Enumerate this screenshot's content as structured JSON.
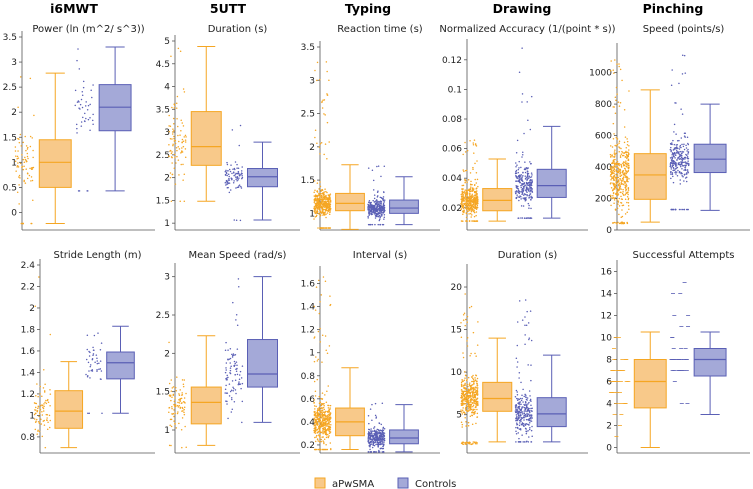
{
  "figure": {
    "legend": [
      {
        "name": "aPwSMA",
        "color": "#f5a623",
        "fill": "#f8c98a"
      },
      {
        "name": "Controls",
        "color": "#5a5fb5",
        "fill": "#a4a9d8"
      }
    ],
    "column_titles": [
      "i6MWT",
      "5UTT",
      "Typing",
      "Drawing",
      "Pinching"
    ]
  },
  "chart_data": [
    {
      "type": "box",
      "title": "Power (ln (m^2/ s^3))",
      "ylim": [
        -0.35,
        3.5
      ],
      "ticks": [
        0,
        0.5,
        1,
        1.5,
        2,
        2.5,
        3,
        3.5
      ],
      "tick_labels": [
        "0",
        "0.5",
        "1",
        "1.5",
        "2",
        "2.5",
        "3",
        "3.5"
      ],
      "series": [
        {
          "name": "aPwSMA",
          "min": -0.22,
          "q1": 0.5,
          "median": 1.0,
          "q3": 1.45,
          "max": 2.78,
          "pmin": -0.22,
          "pmax": 2.8,
          "n": 80
        },
        {
          "name": "Controls",
          "min": 0.43,
          "q1": 1.63,
          "median": 2.1,
          "q3": 2.55,
          "max": 3.3,
          "pmin": 0.43,
          "pmax": 3.3,
          "n": 45
        }
      ]
    },
    {
      "type": "box",
      "title": "Duration (s)",
      "ylim": [
        0.85,
        5.0
      ],
      "ticks": [
        1,
        1.5,
        2,
        2.5,
        3,
        3.5,
        4,
        4.5,
        5
      ],
      "tick_labels": [
        "1",
        "1.5",
        "2",
        "2.5",
        "3",
        "3.5",
        "4",
        "4.5",
        "5"
      ],
      "series": [
        {
          "name": "aPwSMA",
          "min": 1.48,
          "q1": 2.27,
          "median": 2.68,
          "q3": 3.45,
          "max": 4.88,
          "pmin": 1.48,
          "pmax": 4.9,
          "n": 90
        },
        {
          "name": "Controls",
          "min": 1.07,
          "q1": 1.8,
          "median": 2.02,
          "q3": 2.2,
          "max": 2.78,
          "pmin": 1.05,
          "pmax": 3.2,
          "n": 90
        }
      ]
    },
    {
      "type": "box",
      "title": "Reaction time (s)",
      "ylim": [
        0.75,
        3.5
      ],
      "ticks": [
        1,
        1.5,
        2,
        2.5,
        3,
        3.5
      ],
      "tick_labels": [
        "1",
        "1.5",
        "2",
        "2.5",
        "3",
        "3.5"
      ],
      "series": [
        {
          "name": "aPwSMA",
          "min": 0.76,
          "q1": 1.04,
          "median": 1.15,
          "q3": 1.3,
          "max": 1.73,
          "pmin": 0.78,
          "pmax": 3.35,
          "n": 420
        },
        {
          "name": "Controls",
          "min": 0.83,
          "q1": 1.0,
          "median": 1.08,
          "q3": 1.2,
          "max": 1.55,
          "pmin": 0.83,
          "pmax": 1.75,
          "n": 300
        }
      ]
    },
    {
      "type": "box",
      "title": "Normalized Accuracy (1/(point * s))",
      "ylim": [
        0.005,
        0.13
      ],
      "ticks": [
        0.02,
        0.04,
        0.06,
        0.08,
        0.1,
        0.12
      ],
      "tick_labels": [
        "0.02",
        "0.04",
        "0.06",
        "0.08",
        "0.1",
        "0.12"
      ],
      "series": [
        {
          "name": "aPwSMA",
          "min": 0.011,
          "q1": 0.018,
          "median": 0.025,
          "q3": 0.033,
          "max": 0.053,
          "pmin": 0.011,
          "pmax": 0.066,
          "n": 420
        },
        {
          "name": "Controls",
          "min": 0.013,
          "q1": 0.027,
          "median": 0.035,
          "q3": 0.046,
          "max": 0.075,
          "pmin": 0.013,
          "pmax": 0.13,
          "n": 260
        }
      ]
    },
    {
      "type": "box",
      "title": "Speed (points/s)",
      "ylim": [
        0,
        1150
      ],
      "ticks": [
        0,
        200,
        400,
        600,
        800,
        1000
      ],
      "tick_labels": [
        "0",
        "200",
        "400",
        "600",
        "800",
        "1000"
      ],
      "series": [
        {
          "name": "aPwSMA",
          "min": 50,
          "q1": 195,
          "median": 350,
          "q3": 485,
          "max": 890,
          "pmin": 40,
          "pmax": 1100,
          "n": 420
        },
        {
          "name": "Controls",
          "min": 125,
          "q1": 365,
          "median": 450,
          "q3": 545,
          "max": 800,
          "pmin": 130,
          "pmax": 1120,
          "n": 260
        }
      ]
    },
    {
      "type": "box",
      "title": "Stride Length (m)",
      "ylim": [
        0.65,
        2.4
      ],
      "ticks": [
        0.8,
        1,
        1.2,
        1.4,
        1.6,
        1.8,
        2,
        2.2,
        2.4
      ],
      "tick_labels": [
        "0.8",
        "1",
        "1.2",
        "1.4",
        "1.6",
        "1.8",
        "2",
        "2.2",
        "2.4"
      ],
      "series": [
        {
          "name": "aPwSMA",
          "min": 0.7,
          "q1": 0.88,
          "median": 1.04,
          "q3": 1.23,
          "max": 1.5,
          "pmin": 0.7,
          "pmax": 2.33,
          "n": 80
        },
        {
          "name": "Controls",
          "min": 1.02,
          "q1": 1.34,
          "median": 1.49,
          "q3": 1.59,
          "max": 1.83,
          "pmin": 1.02,
          "pmax": 1.83,
          "n": 45
        }
      ]
    },
    {
      "type": "box",
      "title": "Mean Speed (rad/s)",
      "ylim": [
        0.7,
        3.1
      ],
      "ticks": [
        1,
        1.5,
        2,
        2.5,
        3
      ],
      "tick_labels": [
        "1",
        "1.5",
        "2",
        "2.5",
        "3"
      ],
      "series": [
        {
          "name": "aPwSMA",
          "min": 0.8,
          "q1": 1.08,
          "median": 1.36,
          "q3": 1.56,
          "max": 2.23,
          "pmin": 0.75,
          "pmax": 2.85,
          "n": 90
        },
        {
          "name": "Controls",
          "min": 1.1,
          "q1": 1.56,
          "median": 1.73,
          "q3": 2.18,
          "max": 3.0,
          "pmin": 1.1,
          "pmax": 3.05,
          "n": 90
        }
      ]
    },
    {
      "type": "box",
      "title": "Interval (s)",
      "ylim": [
        0.13,
        1.7
      ],
      "ticks": [
        0.2,
        0.4,
        0.6,
        0.8,
        1,
        1.2,
        1.4,
        1.6
      ],
      "tick_labels": [
        "0.2",
        "0.4",
        "0.6",
        "0.8",
        "1",
        "1.2",
        "1.4",
        "1.6"
      ],
      "series": [
        {
          "name": "aPwSMA",
          "min": 0.16,
          "q1": 0.28,
          "median": 0.4,
          "q3": 0.52,
          "max": 0.87,
          "pmin": 0.16,
          "pmax": 1.66,
          "n": 420
        },
        {
          "name": "Controls",
          "min": 0.14,
          "q1": 0.21,
          "median": 0.26,
          "q3": 0.33,
          "max": 0.55,
          "pmin": 0.14,
          "pmax": 0.6,
          "n": 300
        }
      ]
    },
    {
      "type": "box",
      "title": "Duration (s)",
      "ylim": [
        0.5,
        22
      ],
      "ticks": [
        5,
        10,
        15,
        20
      ],
      "tick_labels": [
        "5",
        "10",
        "15",
        "20"
      ],
      "series": [
        {
          "name": "aPwSMA",
          "min": 1.8,
          "q1": 5.4,
          "median": 6.9,
          "q3": 8.8,
          "max": 14.0,
          "pmin": 1.5,
          "pmax": 21.0,
          "n": 420
        },
        {
          "name": "Controls",
          "min": 1.8,
          "q1": 3.6,
          "median": 5.1,
          "q3": 7.0,
          "max": 12.0,
          "pmin": 1.8,
          "pmax": 18.5,
          "n": 260
        }
      ]
    },
    {
      "type": "box",
      "title": "Successful Attempts",
      "ylim": [
        -0.5,
        16.5
      ],
      "ticks": [
        0,
        2,
        4,
        6,
        8,
        10,
        12,
        14,
        16
      ],
      "tick_labels": [
        "0",
        "2",
        "4",
        "6",
        "8",
        "10",
        "12",
        "14",
        "16"
      ],
      "series": [
        {
          "name": "aPwSMA",
          "min": 0,
          "q1": 3.6,
          "median": 6.0,
          "q3": 8.0,
          "max": 10.5,
          "pmin": 0,
          "pmax": 10.5,
          "n": 40,
          "discrete": true
        },
        {
          "name": "Controls",
          "min": 3.0,
          "q1": 6.5,
          "median": 8.0,
          "q3": 9.0,
          "max": 10.5,
          "pmin": 1,
          "pmax": 15.5,
          "n": 34,
          "discrete": true
        }
      ]
    }
  ]
}
